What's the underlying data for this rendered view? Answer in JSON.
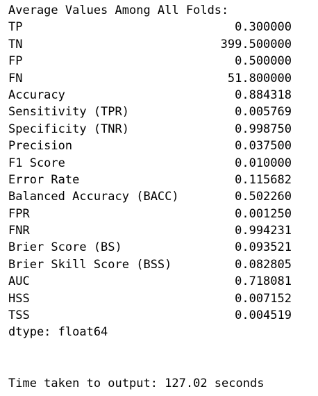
{
  "output": {
    "header": "Average Values Among All Folds:",
    "rows": [
      {
        "metric": "TP",
        "value": "0.300000"
      },
      {
        "metric": "TN",
        "value": "399.500000"
      },
      {
        "metric": "FP",
        "value": "0.500000"
      },
      {
        "metric": "FN",
        "value": "51.800000"
      },
      {
        "metric": "Accuracy",
        "value": "0.884318"
      },
      {
        "metric": "Sensitivity (TPR)",
        "value": "0.005769"
      },
      {
        "metric": "Specificity (TNR)",
        "value": "0.998750"
      },
      {
        "metric": "Precision",
        "value": "0.037500"
      },
      {
        "metric": "F1 Score",
        "value": "0.010000"
      },
      {
        "metric": "Error Rate",
        "value": "0.115682"
      },
      {
        "metric": "Balanced Accuracy (BACC)",
        "value": "0.502260"
      },
      {
        "metric": "FPR",
        "value": "0.001250"
      },
      {
        "metric": "FNR",
        "value": "0.994231"
      },
      {
        "metric": "Brier Score (BS)",
        "value": "0.093521"
      },
      {
        "metric": "Brier Skill Score (BSS)",
        "value": "0.082805"
      },
      {
        "metric": "AUC",
        "value": "0.718081"
      },
      {
        "metric": "HSS",
        "value": "0.007152"
      },
      {
        "metric": "TSS",
        "value": "0.004519"
      }
    ],
    "dtype_line": "dtype: float64",
    "time_line": "Time taken to output: 127.02 seconds"
  }
}
